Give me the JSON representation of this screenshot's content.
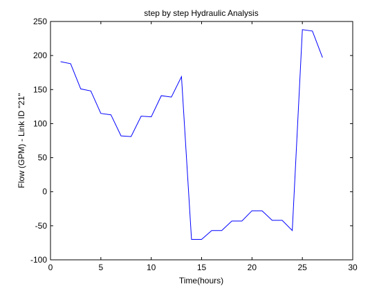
{
  "chart_data": {
    "type": "line",
    "title": "step by step Hydraulic Analysis",
    "xlabel": "Time(hours)",
    "ylabel": "Flow (GPM) - Link ID \"21\"",
    "xlim": [
      0,
      30
    ],
    "ylim": [
      -100,
      250
    ],
    "xticks": [
      0,
      5,
      10,
      15,
      20,
      25,
      30
    ],
    "yticks": [
      -100,
      -50,
      0,
      50,
      100,
      150,
      200,
      250
    ],
    "grid": false,
    "colors": {
      "line": "#0000ff",
      "axes": "#000000",
      "background": "#ffffff"
    },
    "series": [
      {
        "x": [
          1,
          2,
          3,
          4,
          5,
          6,
          7,
          8,
          9,
          10,
          11,
          12,
          13,
          14,
          15,
          16,
          17,
          18,
          19,
          20,
          21,
          22,
          23,
          24,
          25,
          26,
          27
        ],
        "values": [
          191,
          188,
          151,
          148,
          115,
          113,
          82,
          81,
          111,
          110,
          141,
          139,
          169,
          -70,
          -70,
          -57,
          -57,
          -43,
          -43,
          -28,
          -28,
          -42,
          -42,
          -57,
          238,
          236,
          197
        ]
      }
    ]
  }
}
